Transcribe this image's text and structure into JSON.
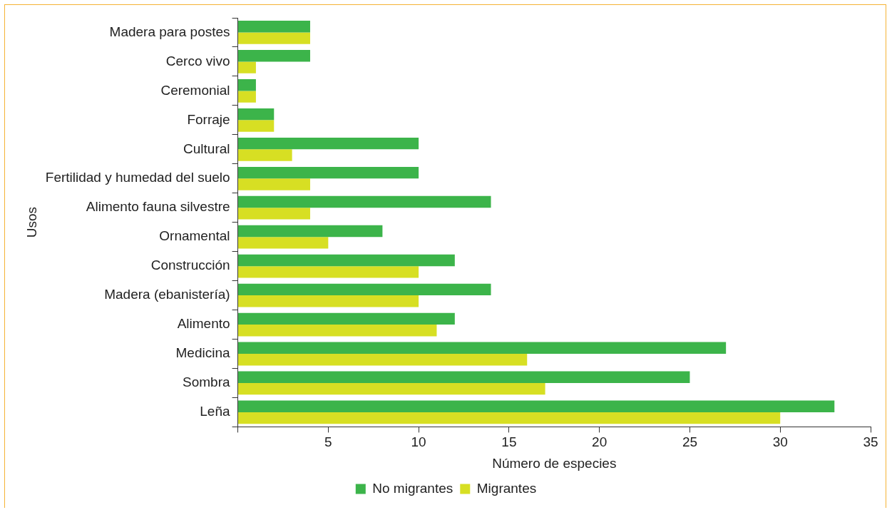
{
  "chart_data": {
    "type": "bar",
    "orientation": "horizontal",
    "xlabel": "Número de especies",
    "ylabel": "Usos",
    "categories": [
      "Madera para postes",
      "Cerco vivo",
      "Ceremonial",
      "Forraje",
      "Cultural",
      "Fertilidad y humedad del suelo",
      "Alimento fauna silvestre",
      "Ornamental",
      "Construcción",
      "Madera (ebanistería)",
      "Alimento",
      "Medicina",
      "Sombra",
      "Leña"
    ],
    "series": [
      {
        "name": "No migrantes",
        "color": "#3cb44a",
        "values": [
          4,
          4,
          1,
          2,
          10,
          10,
          14,
          8,
          12,
          14,
          12,
          27,
          25,
          33
        ]
      },
      {
        "name": "Migrantes",
        "color": "#d7df23",
        "values": [
          4,
          1,
          1,
          2,
          3,
          4,
          4,
          5,
          10,
          10,
          11,
          16,
          17,
          30
        ]
      }
    ],
    "xlim": [
      0,
      35
    ],
    "xticks": [
      {
        "value": 0,
        "label": null
      },
      5,
      10,
      15,
      20,
      25,
      30,
      35
    ],
    "grid": false,
    "legend": "bottom"
  }
}
